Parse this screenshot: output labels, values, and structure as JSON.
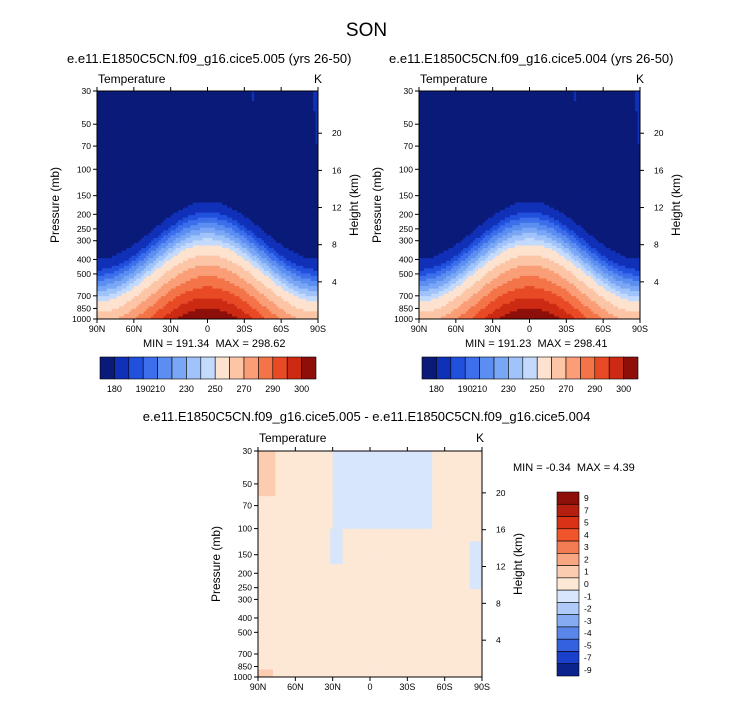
{
  "figure": {
    "title": "SON",
    "panels": [
      {
        "title": "e.e11.E1850C5CN.f09_g16.cice5.005 (yrs 26-50)",
        "variable": "Temperature",
        "unit": "K",
        "min_label": "MIN = 191.34",
        "max_label": "MAX = 298.62"
      },
      {
        "title": "e.e11.E1850C5CN.f09_g16.cice5.004 (yrs 26-50)",
        "variable": "Temperature",
        "unit": "K",
        "min_label": "MIN = 191.23",
        "max_label": "MAX = 298.41"
      },
      {
        "title": "e.e11.E1850C5CN.f09_g16.cice5.005 - e.e11.E1850C5CN.f09_g16.cice5.004",
        "variable": "Temperature",
        "unit": "K",
        "min_label": "MIN =  -0.34",
        "max_label": "MAX =  4.39"
      }
    ]
  },
  "chart_data": [
    {
      "type": "heatmap",
      "title": "e.e11.E1850C5CN.f09_g16.cice5.005 (yrs 26-50)",
      "xlabel": "",
      "ylabel": "Pressure (mb)",
      "y2label": "Height (km)",
      "x_ticks": [
        "90N",
        "60N",
        "30N",
        "0",
        "30S",
        "60S",
        "90S"
      ],
      "y_ticks": [
        "30",
        "50",
        "70",
        "100",
        "150",
        "200",
        "250",
        "300",
        "400",
        "500",
        "700",
        "850",
        "1000"
      ],
      "y2_ticks": [
        "20",
        "16",
        "12",
        "8",
        "4"
      ],
      "colorbar_levels": [
        "180",
        "190",
        "210",
        "230",
        "250",
        "270",
        "290",
        "300"
      ],
      "min": 191.34,
      "max": 298.62
    },
    {
      "type": "heatmap",
      "title": "e.e11.E1850C5CN.f09_g16.cice5.004 (yrs 26-50)",
      "xlabel": "",
      "ylabel": "Pressure (mb)",
      "y2label": "Height (km)",
      "x_ticks": [
        "90N",
        "60N",
        "30N",
        "0",
        "30S",
        "60S",
        "90S"
      ],
      "y_ticks": [
        "30",
        "50",
        "70",
        "100",
        "150",
        "200",
        "250",
        "300",
        "400",
        "500",
        "700",
        "850",
        "1000"
      ],
      "y2_ticks": [
        "20",
        "16",
        "12",
        "8",
        "4"
      ],
      "colorbar_levels": [
        "180",
        "190",
        "210",
        "230",
        "250",
        "270",
        "290",
        "300"
      ],
      "min": 191.23,
      "max": 298.41
    },
    {
      "type": "heatmap",
      "title": "e.e11.E1850C5CN.f09_g16.cice5.005 - e.e11.E1850C5CN.f09_g16.cice5.004",
      "xlabel": "",
      "ylabel": "Pressure (mb)",
      "y2label": "Height (km)",
      "x_ticks": [
        "90N",
        "60N",
        "30N",
        "0",
        "30S",
        "60S",
        "90S"
      ],
      "y_ticks": [
        "30",
        "50",
        "70",
        "100",
        "150",
        "200",
        "250",
        "300",
        "400",
        "500",
        "700",
        "850",
        "1000"
      ],
      "y2_ticks": [
        "20",
        "16",
        "12",
        "8",
        "4"
      ],
      "colorbar_levels": [
        "9",
        "7",
        "5",
        "4",
        "3",
        "2",
        "1",
        "0",
        "-1",
        "-2",
        "-3",
        "-4",
        "-5",
        "-7",
        "-9"
      ],
      "min": -0.34,
      "max": 4.39
    }
  ],
  "colors": {
    "abs_scale": [
      "#0a1a78",
      "#1030b8",
      "#2050dc",
      "#3d6eeb",
      "#5b8ef0",
      "#7aa7f5",
      "#9fc3fa",
      "#c3dafd",
      "#fde3cf",
      "#fcc5a6",
      "#fa9e78",
      "#f47449",
      "#e84a26",
      "#cc2a12",
      "#8e0f0a"
    ],
    "diff_scale": [
      "#8e0f0a",
      "#b51f10",
      "#d83317",
      "#f0552b",
      "#f47c54",
      "#f8a582",
      "#fcccb1",
      "#fde8d6",
      "#d8e6fc",
      "#b0cbf8",
      "#87abf2",
      "#5a86ea",
      "#3461e0",
      "#1a3fcc",
      "#0b238f"
    ]
  }
}
